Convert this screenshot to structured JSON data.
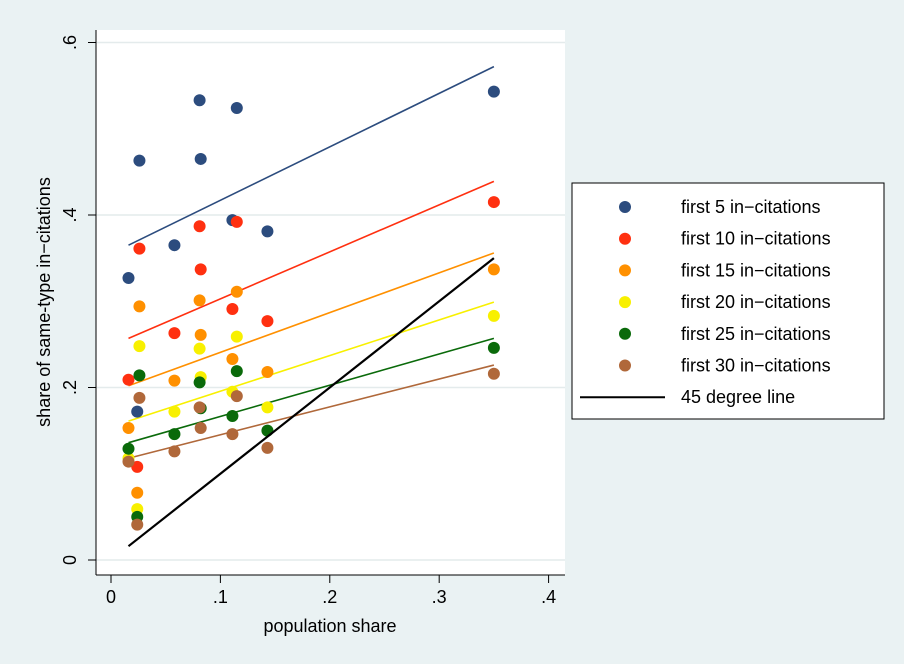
{
  "chart_data": {
    "type": "scatter",
    "x_label": "population share",
    "y_label": "share of same-type in−citations",
    "x": [
      0.016,
      0.024,
      0.026,
      0.058,
      0.081,
      0.082,
      0.111,
      0.115,
      0.143,
      0.35
    ],
    "series": [
      {
        "name": "first 5 in−citations",
        "color": "#2c4c7e",
        "values": [
          0.327,
          0.172,
          0.463,
          0.365,
          0.533,
          0.465,
          0.394,
          0.524,
          0.381,
          0.543
        ]
      },
      {
        "name": "first 10 in−citations",
        "color": "#ff3010",
        "values": [
          0.209,
          0.108,
          0.361,
          0.263,
          0.387,
          0.337,
          0.291,
          0.392,
          0.277,
          0.415
        ]
      },
      {
        "name": "first 15 in−citations",
        "color": "#ff9000",
        "values": [
          0.153,
          0.078,
          0.294,
          0.208,
          0.301,
          0.261,
          0.233,
          0.311,
          0.218,
          0.337
        ]
      },
      {
        "name": "first 20 in−citations",
        "color": "#f8f000",
        "values": [
          0.118,
          0.059,
          0.248,
          0.172,
          0.245,
          0.212,
          0.195,
          0.259,
          0.177,
          0.283
        ]
      },
      {
        "name": "first 25 in−citations",
        "color": "#0a6a0a",
        "values": [
          0.129,
          0.05,
          0.214,
          0.146,
          0.206,
          0.176,
          0.167,
          0.219,
          0.15,
          0.246
        ]
      },
      {
        "name": "first 30 in−citations",
        "color": "#b0683a",
        "values": [
          0.114,
          0.041,
          0.188,
          0.126,
          0.177,
          0.153,
          0.146,
          0.19,
          0.13,
          0.216
        ]
      },
      {
        "name": "45 degree line",
        "color": "#000000",
        "type": "line",
        "x": [
          0.016,
          0.35
        ],
        "values": [
          0.016,
          0.35
        ]
      }
    ],
    "fits": [
      {
        "color": "#2c4c7e",
        "x": [
          0.016,
          0.35
        ],
        "values": [
          0.365,
          0.572
        ]
      },
      {
        "color": "#ff3010",
        "x": [
          0.016,
          0.35
        ],
        "values": [
          0.257,
          0.439
        ]
      },
      {
        "color": "#ff9000",
        "x": [
          0.016,
          0.35
        ],
        "values": [
          0.202,
          0.356
        ]
      },
      {
        "color": "#f8f000",
        "x": [
          0.016,
          0.35
        ],
        "values": [
          0.161,
          0.299
        ]
      },
      {
        "color": "#0a6a0a",
        "x": [
          0.016,
          0.35
        ],
        "values": [
          0.136,
          0.257
        ]
      },
      {
        "color": "#b0683a",
        "x": [
          0.016,
          0.35
        ],
        "values": [
          0.118,
          0.226
        ]
      }
    ],
    "xlim": [
      -0.0137,
      0.415
    ],
    "ylim": [
      -0.0174,
      0.6145
    ],
    "xticks": [
      0,
      {
        "value": 0.1,
        "label": ".1"
      },
      {
        "value": 0.2,
        "label": ".2"
      },
      {
        "value": 0.3,
        "label": ".3"
      },
      {
        "value": 0.4,
        "label": ".4"
      }
    ],
    "yticks": [
      0,
      {
        "value": 0.2,
        "label": ".2"
      },
      {
        "value": 0.4,
        "label": ".4"
      },
      {
        "value": 0.6,
        "label": ".6"
      }
    ],
    "grid": true,
    "legend": "right"
  }
}
